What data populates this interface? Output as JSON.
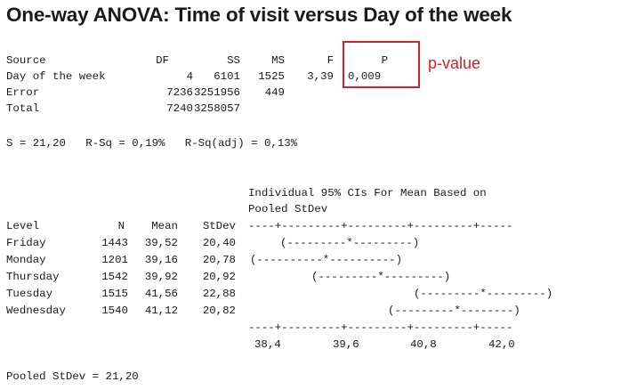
{
  "title": "One-way ANOVA: Time of visit versus Day of the week",
  "anova": {
    "headers": {
      "source": "Source",
      "df": "DF",
      "ss": "SS",
      "ms": "MS",
      "f": "F",
      "p": "P"
    },
    "rows": [
      {
        "source": "Day of the week",
        "df": "4",
        "ss": "6101",
        "ms": "1525",
        "f": "3,39",
        "p": "0,009"
      },
      {
        "source": "Error",
        "df": "7236",
        "ss": "3251956",
        "ms": "449",
        "f": "",
        "p": ""
      },
      {
        "source": "Total",
        "df": "7240",
        "ss": "3258057",
        "ms": "",
        "f": "",
        "p": ""
      }
    ]
  },
  "annotation": {
    "label": "p-value",
    "color": "#c9252b"
  },
  "stats_line": "S = 21,20   R-Sq = 0,19%   R-Sq(adj) = 0,13%",
  "ci": {
    "header_line1": "Individual 95% CIs For Mean Based on",
    "header_line2": "Pooled StDev",
    "headers": {
      "level": "Level",
      "n": "N",
      "mean": "Mean",
      "stdev": "StDev"
    },
    "rows": [
      {
        "level": "Friday",
        "n": "1443",
        "mean": "39,52",
        "stdev": "20,40",
        "interval": "(---------*---------)"
      },
      {
        "level": "Monday",
        "n": "1201",
        "mean": "39,16",
        "stdev": "20,78",
        "interval": "(----------*----------)"
      },
      {
        "level": "Thursday",
        "n": "1542",
        "mean": "39,92",
        "stdev": "20,92",
        "interval": "(---------*---------)"
      },
      {
        "level": "Tuesday",
        "n": "1515",
        "mean": "41,56",
        "stdev": "22,88",
        "interval": "(---------*---------)"
      },
      {
        "level": "Wednesday",
        "n": "1540",
        "mean": "41,12",
        "stdev": "20,82",
        "interval": "(---------*--------)"
      }
    ],
    "top_rule": "----+---------+---------+---------+-----",
    "bottom_rule": "----+---------+---------+---------+-----",
    "axis_ticks": [
      "38,4",
      "39,6",
      "40,8",
      "42,0"
    ]
  },
  "pooled": "Pooled StDev = 21,20"
}
